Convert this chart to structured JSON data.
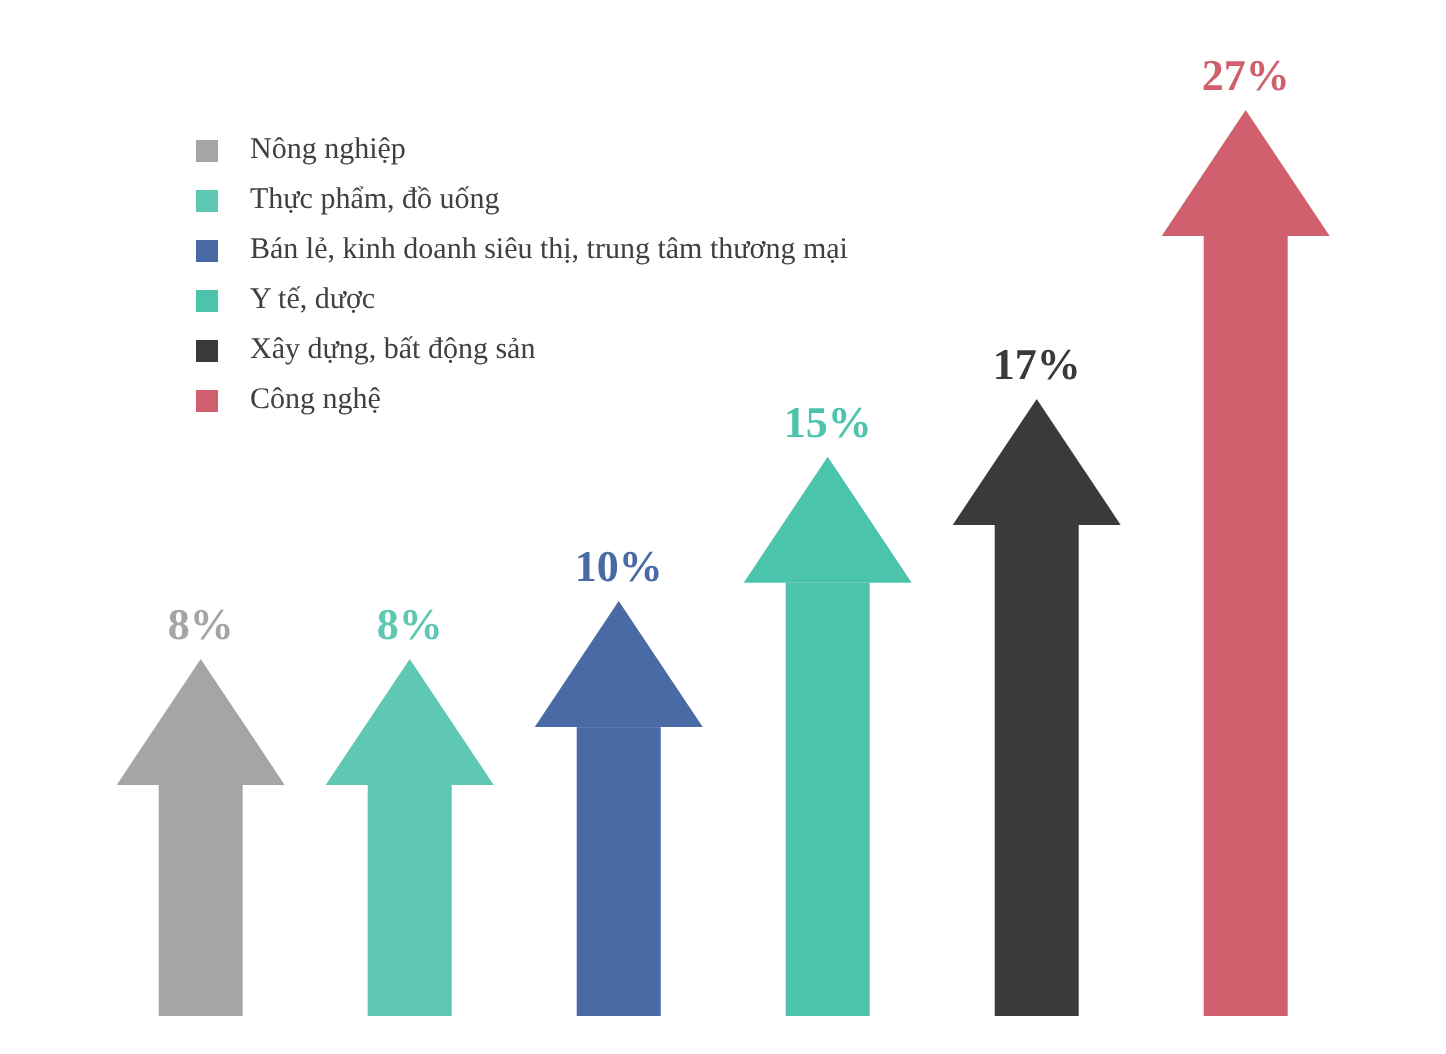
{
  "chart_data": {
    "type": "bar",
    "stacked": true,
    "categories": [
      null,
      null,
      null,
      null,
      null,
      null
    ],
    "series": [
      {
        "name": "Nông nghiệp",
        "color": "#a5a5a8",
        "values": [
          8,
          null,
          null,
          null,
          null,
          null
        ],
        "value_labels": [
          "8%",
          null,
          null,
          null,
          null,
          null
        ]
      },
      {
        "name": "Thực phẩm, đồ uống",
        "color": "#5ec8b2",
        "values": [
          null,
          8,
          null,
          null,
          null,
          null
        ],
        "value_labels": [
          null,
          "8%",
          null,
          null,
          null,
          null
        ]
      },
      {
        "name": "Bán lẻ, kinh doanh siêu thị, trung tâm thương mại",
        "color": "#4a6aa5",
        "values": [
          null,
          null,
          10,
          null,
          null,
          null
        ],
        "value_labels": [
          null,
          null,
          "10%",
          null,
          null,
          null
        ]
      },
      {
        "name": "Y tế, dược",
        "color": "#4cc4ac",
        "values": [
          null,
          null,
          null,
          15,
          null,
          null
        ],
        "value_labels": [
          null,
          null,
          null,
          "15%",
          null,
          null
        ]
      },
      {
        "name": "Xây dựng, bất động sản",
        "color": "#3a3a3a",
        "values": [
          null,
          null,
          null,
          null,
          17,
          null
        ],
        "value_labels": [
          null,
          null,
          null,
          null,
          "17%",
          null
        ]
      },
      {
        "name": "Công nghệ",
        "color": "#d0606e",
        "values": [
          null,
          null,
          null,
          null,
          null,
          27
        ],
        "value_labels": [
          null,
          null,
          null,
          null,
          null,
          "27%"
        ]
      }
    ],
    "legend": "top left",
    "tick_labels": false,
    "grid": false
  }
}
